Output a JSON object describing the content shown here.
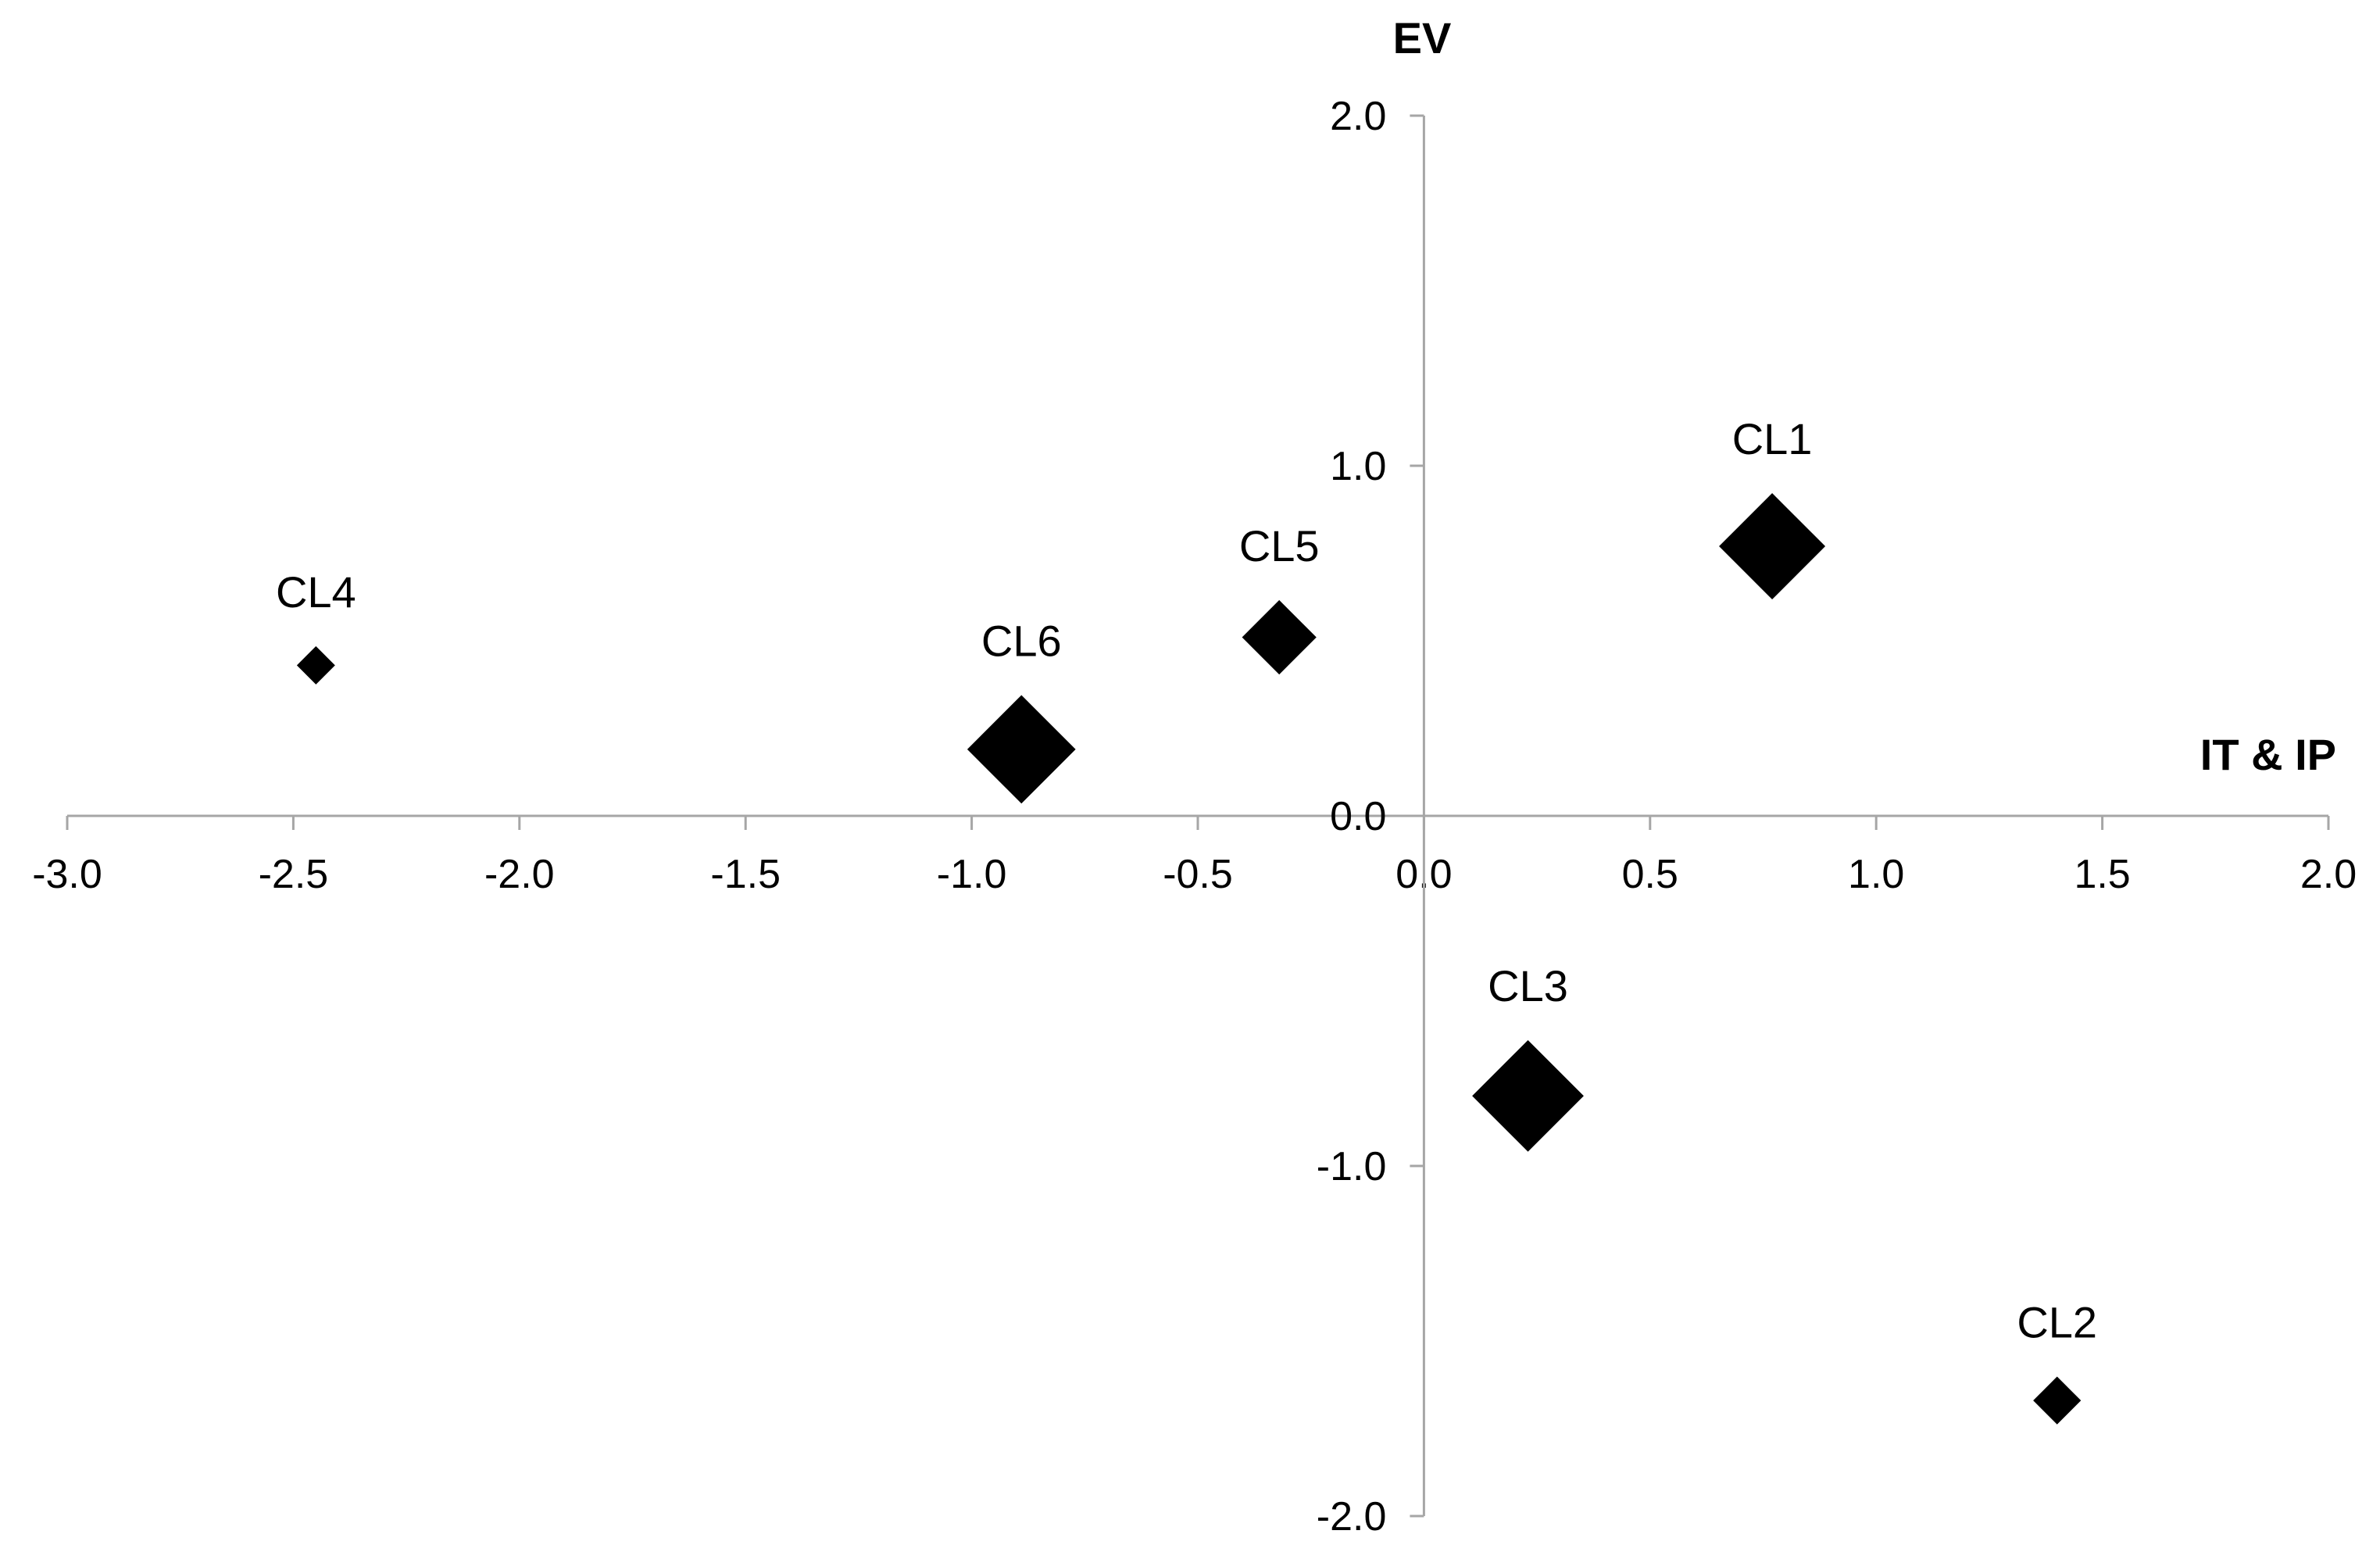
{
  "chart_data": {
    "type": "scatter",
    "title": "",
    "xlabel": "IT & IP",
    "ylabel": "EV",
    "xlim": [
      -3.0,
      2.0
    ],
    "ylim": [
      -2.0,
      2.0
    ],
    "x_ticks": [
      "-3.0",
      "-2.5",
      "-2.0",
      "-1.5",
      "-1.0",
      "-0.5",
      "0.0",
      "0.5",
      "1.0",
      "1.5",
      "2.0"
    ],
    "x_tick_values": [
      -3.0,
      -2.5,
      -2.0,
      -1.5,
      -1.0,
      -0.5,
      0.0,
      0.5,
      1.0,
      1.5,
      2.0
    ],
    "y_ticks": [
      "-2.0",
      "-1.0",
      "0.0",
      "1.0",
      "2.0"
    ],
    "y_tick_values": [
      -2.0,
      -1.0,
      0.0,
      1.0,
      2.0
    ],
    "axes_cross_at_origin": true,
    "grid": false,
    "legend": "none",
    "marker": "diamond",
    "marker_color": "#000000",
    "axis_color": "#a6a6a6",
    "points": [
      {
        "label": "CL1",
        "x": 0.77,
        "y": 0.77,
        "relative_size": 1.0
      },
      {
        "label": "CL2",
        "x": 1.4,
        "y": -1.67,
        "relative_size": 0.45
      },
      {
        "label": "CL3",
        "x": 0.23,
        "y": -0.8,
        "relative_size": 1.05
      },
      {
        "label": "CL4",
        "x": -2.45,
        "y": 0.43,
        "relative_size": 0.36
      },
      {
        "label": "CL5",
        "x": -0.32,
        "y": 0.51,
        "relative_size": 0.7
      },
      {
        "label": "CL6",
        "x": -0.89,
        "y": 0.19,
        "relative_size": 1.02
      }
    ]
  }
}
